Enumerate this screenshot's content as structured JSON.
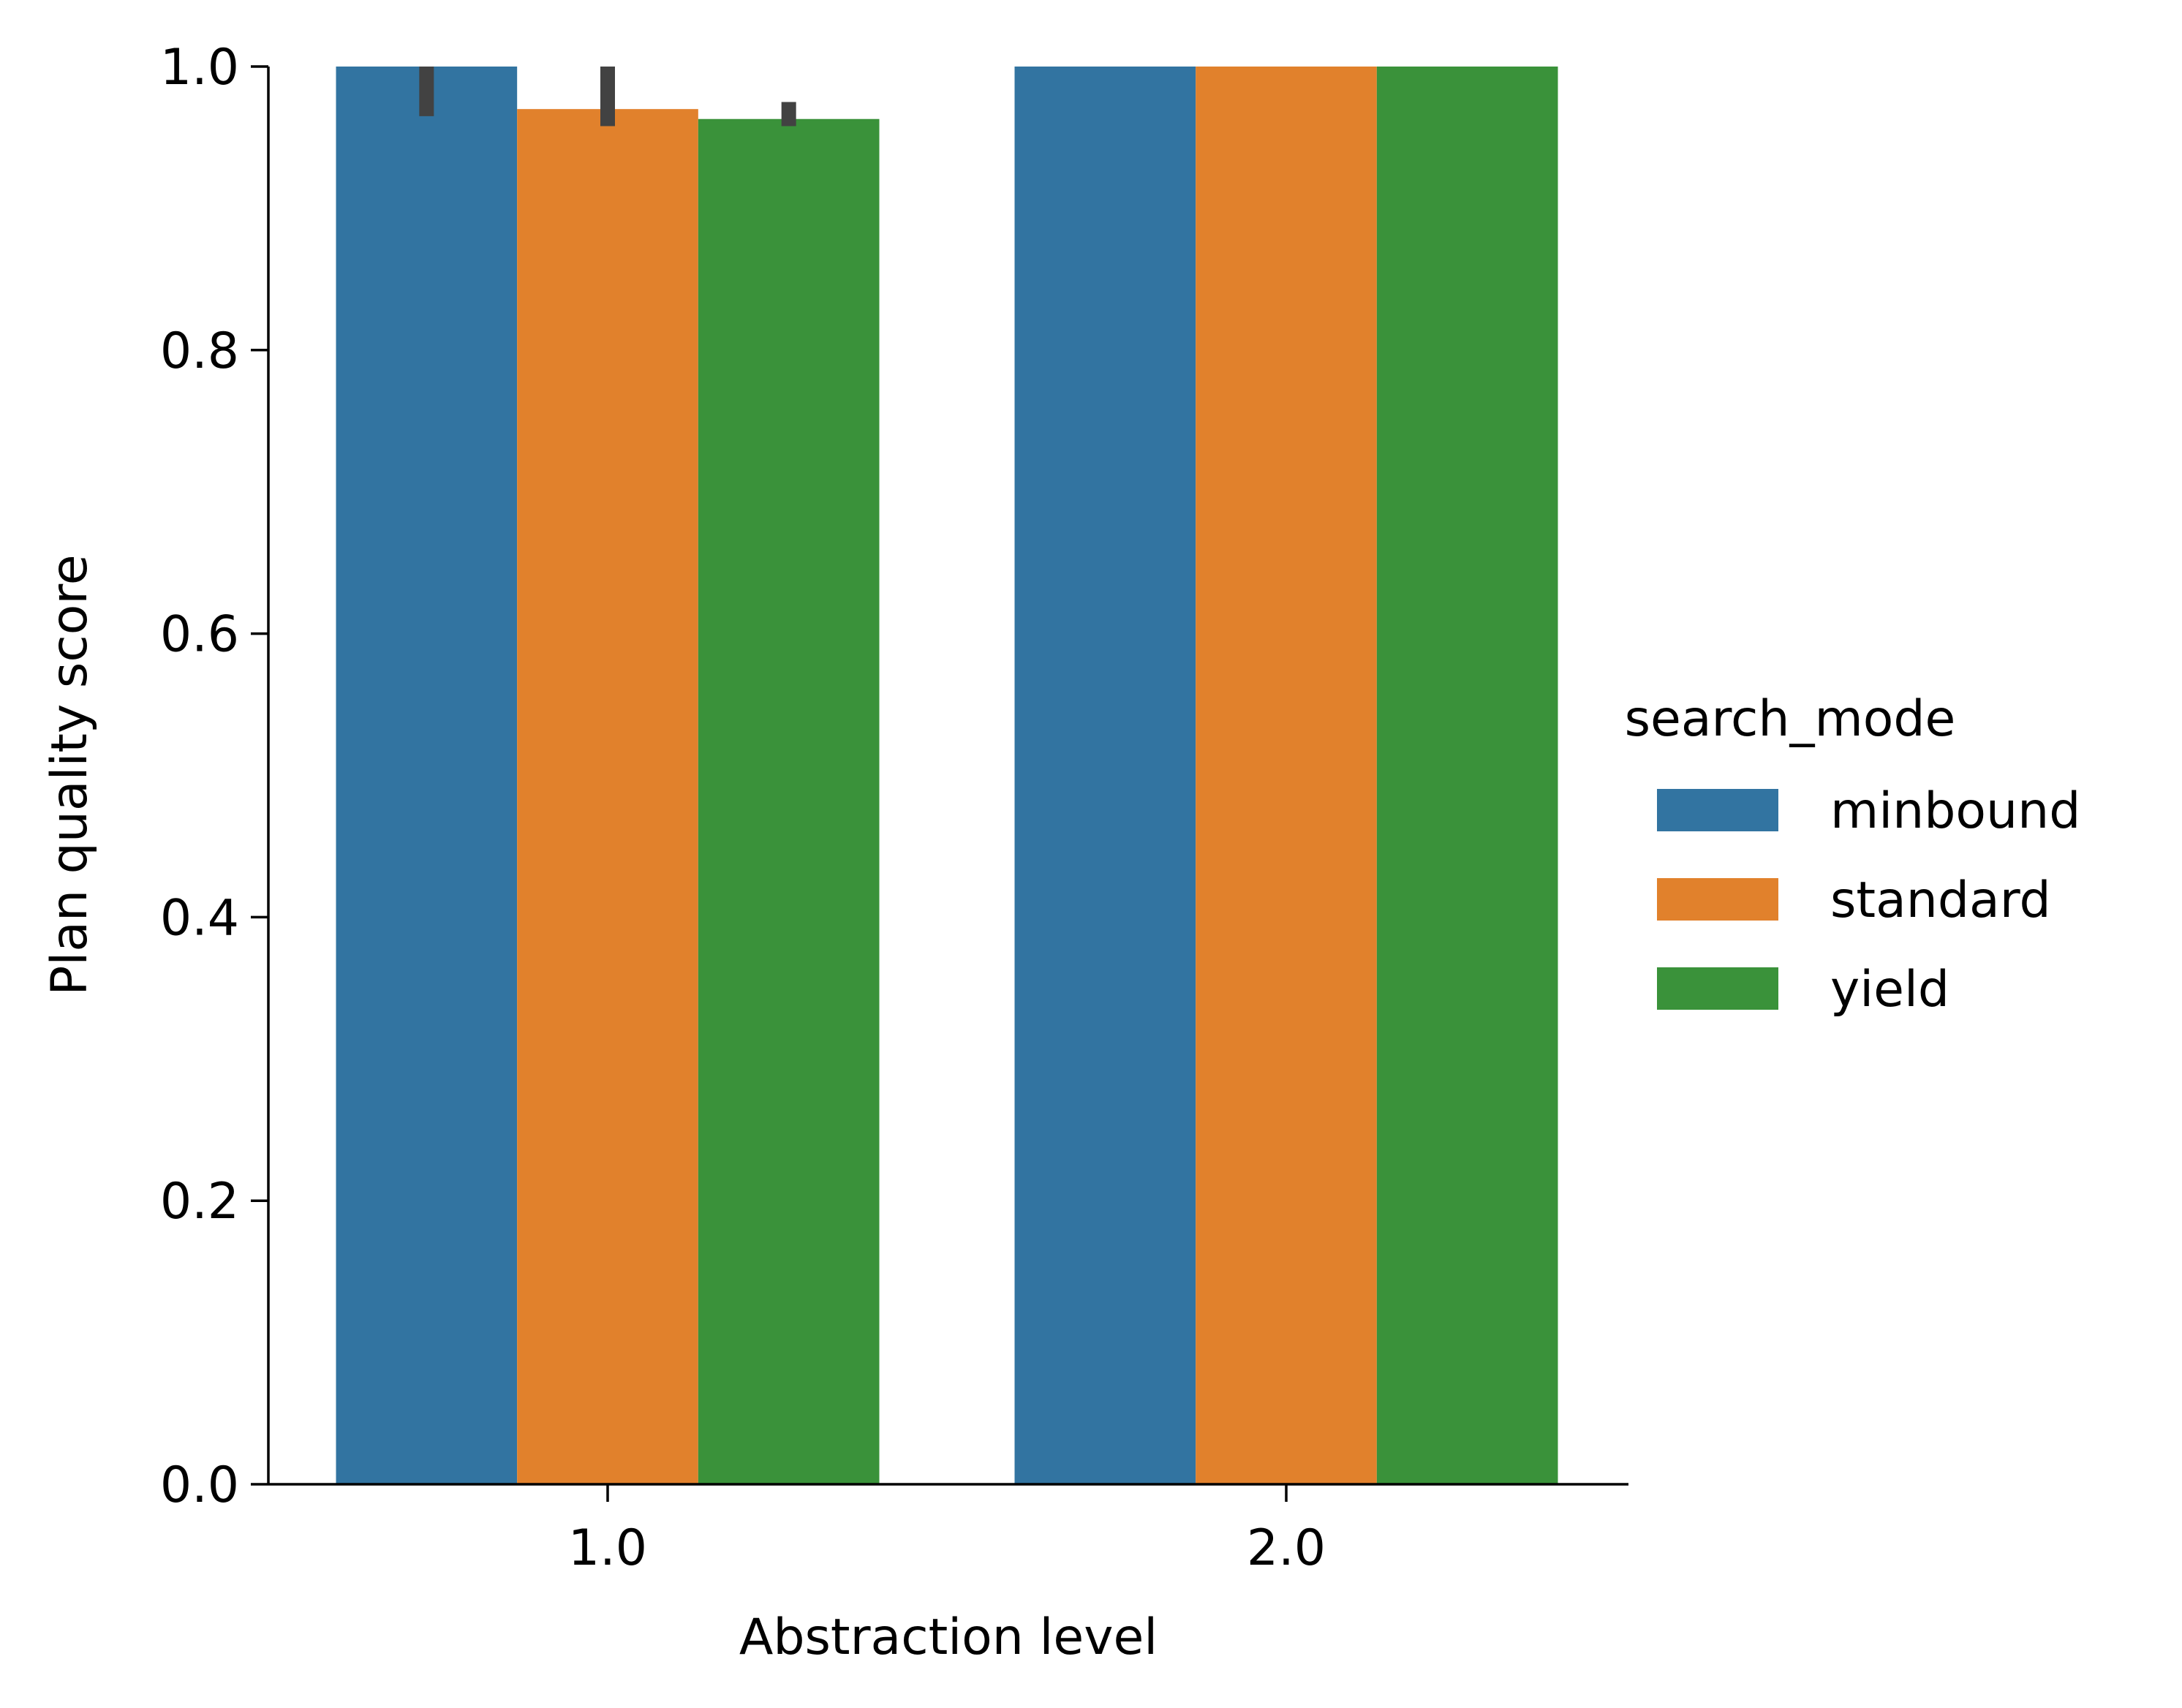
{
  "chart_data": {
    "type": "bar",
    "xlabel": "Abstraction level",
    "ylabel": "Plan quality score",
    "categories": [
      "1.0",
      "2.0"
    ],
    "ylim": [
      0,
      1.0
    ],
    "yticks": [
      "0.0",
      "0.2",
      "0.4",
      "0.6",
      "0.8",
      "1.0"
    ],
    "grid": false,
    "legend": {
      "title": "search_mode",
      "placement": "right"
    },
    "series": [
      {
        "name": "minbound",
        "color": "#3274a1",
        "values": [
          1.0,
          1.0
        ],
        "error": [
          [
            0.965,
            1.0
          ],
          null
        ]
      },
      {
        "name": "standard",
        "color": "#e1812c",
        "values": [
          0.97,
          1.0
        ],
        "error": [
          [
            0.958,
            1.0
          ],
          null
        ]
      },
      {
        "name": "yield",
        "color": "#3a923a",
        "values": [
          0.963,
          1.0
        ],
        "error": [
          [
            0.958,
            0.975
          ],
          null
        ]
      }
    ]
  }
}
